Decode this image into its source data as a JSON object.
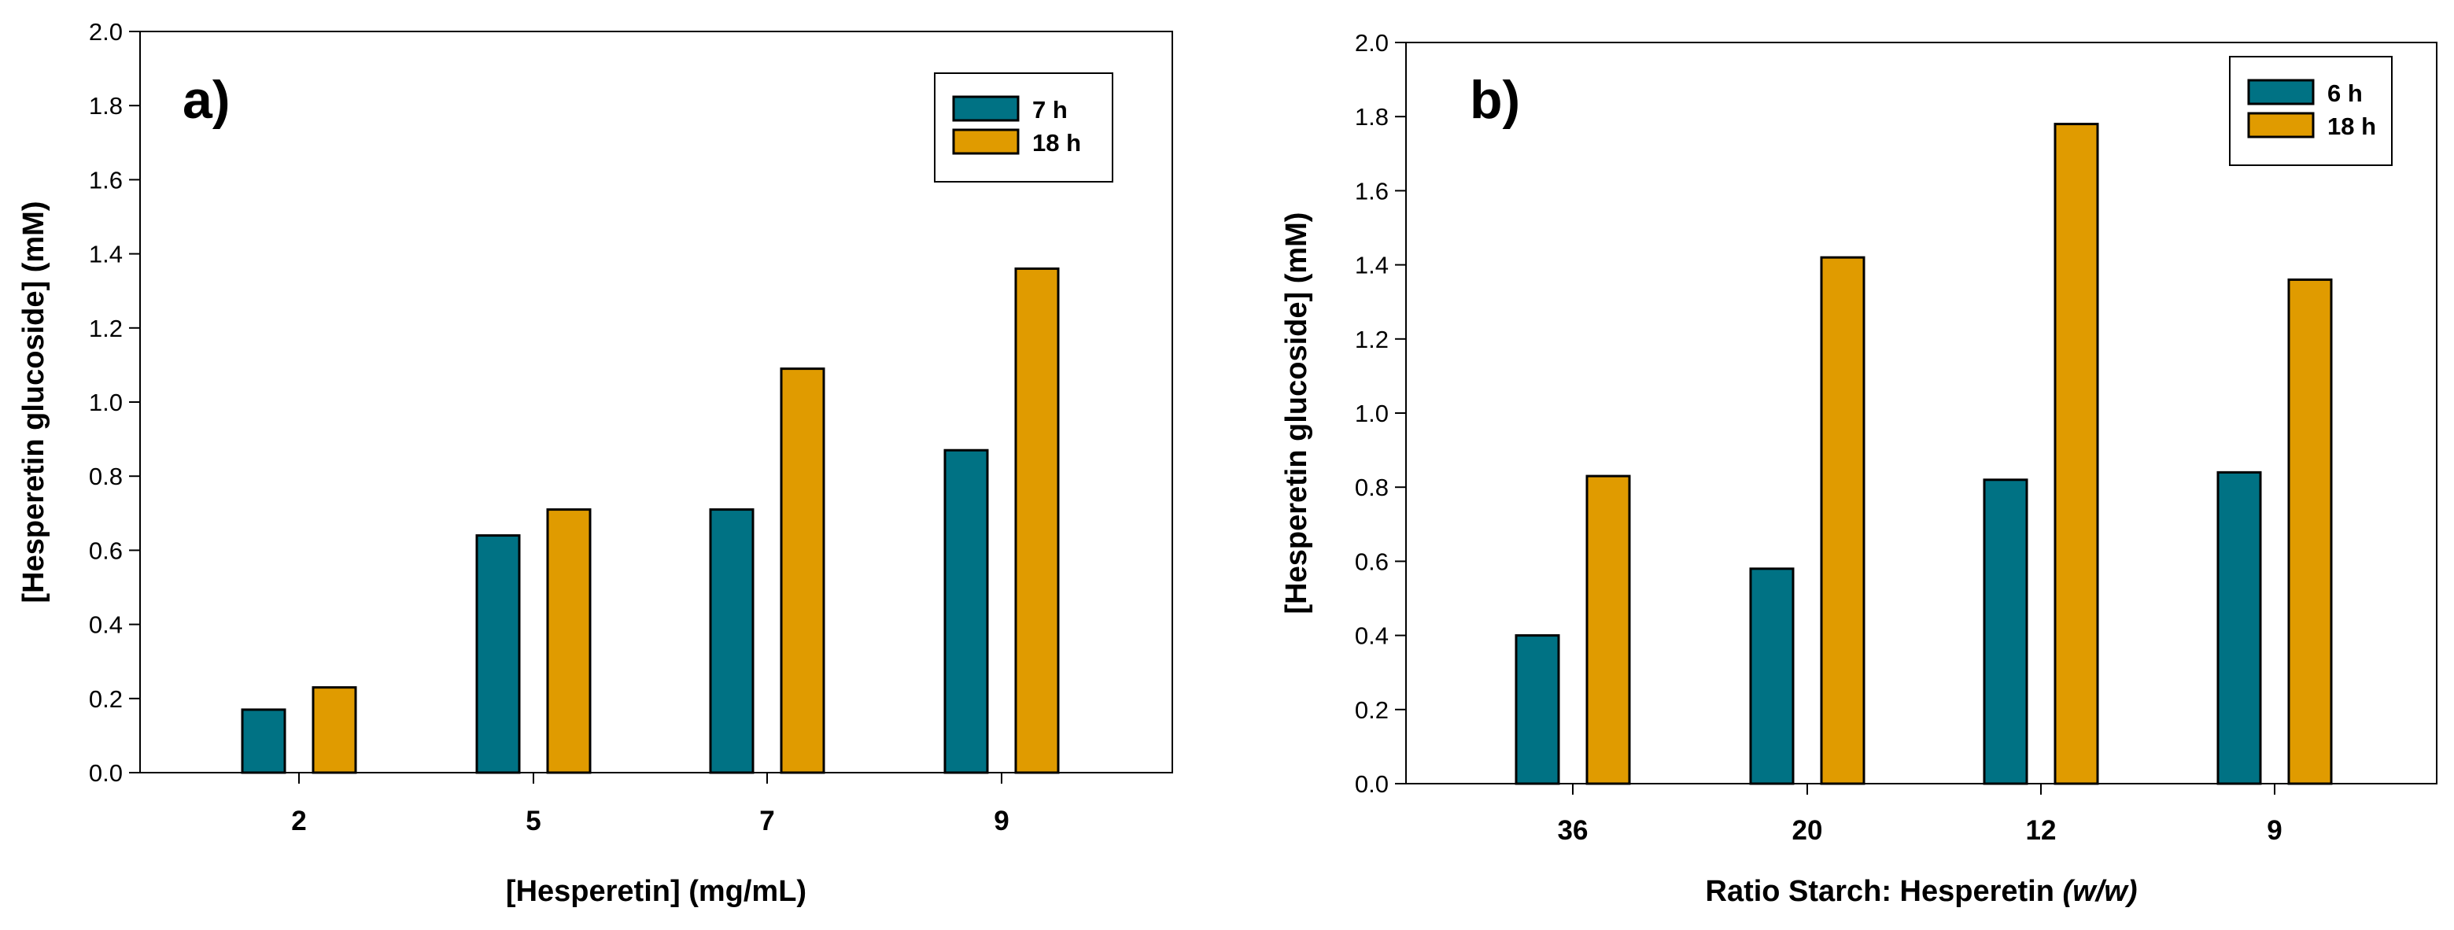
{
  "chart_data": [
    {
      "panel_label": "a)",
      "type": "bar",
      "categories": [
        "2",
        "5",
        "7",
        "9"
      ],
      "series": [
        {
          "name": "7 h",
          "values": [
            0.17,
            0.64,
            0.71,
            0.87
          ],
          "color": "#007284"
        },
        {
          "name": "18 h",
          "values": [
            0.23,
            0.71,
            1.09,
            1.36
          ],
          "color": "#e09b00"
        }
      ],
      "xlabel": "[Hesperetin] (mg/mL)",
      "xlabel_italic": "",
      "ylabel": "[Hesperetin glucoside] (mM)",
      "ylim": [
        0,
        2.0
      ],
      "yticks": [
        "0.0",
        "0.2",
        "0.4",
        "0.6",
        "0.8",
        "1.0",
        "1.2",
        "1.4",
        "1.6",
        "1.8",
        "2.0"
      ],
      "legend_position": "top-right",
      "grid": false
    },
    {
      "panel_label": "b)",
      "type": "bar",
      "categories": [
        "36",
        "20",
        "12",
        "9"
      ],
      "series": [
        {
          "name": "6 h",
          "values": [
            0.4,
            0.58,
            0.82,
            0.84
          ],
          "color": "#007284"
        },
        {
          "name": "18 h",
          "values": [
            0.83,
            1.42,
            1.78,
            1.36
          ],
          "color": "#e09b00"
        }
      ],
      "xlabel": "Ratio Starch: Hesperetin ",
      "xlabel_italic": "(w/w)",
      "ylabel": "[Hesperetin glucoside] (mM)",
      "ylim": [
        0,
        2.0
      ],
      "yticks": [
        "0.0",
        "0.2",
        "0.4",
        "0.6",
        "0.8",
        "1.0",
        "1.2",
        "1.4",
        "1.6",
        "1.8",
        "2.0"
      ],
      "legend_position": "top-right",
      "grid": false
    }
  ]
}
